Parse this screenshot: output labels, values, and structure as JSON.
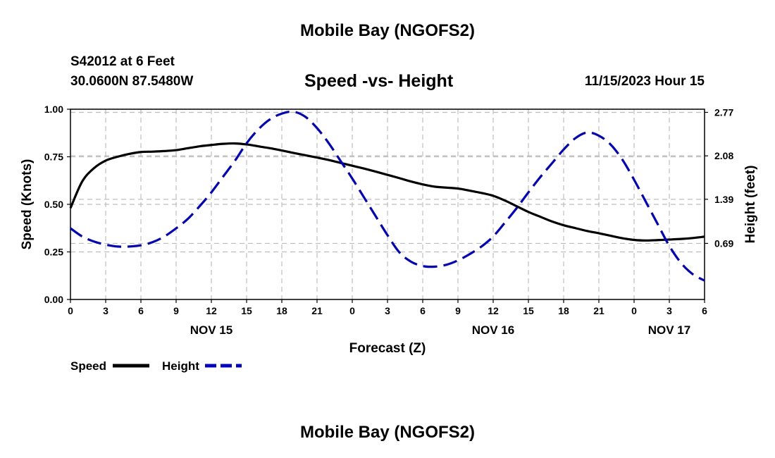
{
  "header": {
    "title": "Mobile Bay (NGOFS2)",
    "station": "S42012 at 6 Feet",
    "coords": "30.0600N  87.5480W",
    "datetime": "11/15/2023 Hour 15",
    "footer_title": "Mobile Bay (NGOFS2)"
  },
  "chart_data": {
    "type": "line",
    "title": "Speed -vs- Height",
    "xlabel": "Forecast (Z)",
    "ylabel_left": "Speed (Knots)",
    "ylabel_right": "Height (feet)",
    "x_range_hours": [
      0,
      54
    ],
    "x_ticks": [
      {
        "hour": 0,
        "label": "0"
      },
      {
        "hour": 3,
        "label": "3"
      },
      {
        "hour": 6,
        "label": "6"
      },
      {
        "hour": 9,
        "label": "9"
      },
      {
        "hour": 12,
        "label": "12"
      },
      {
        "hour": 15,
        "label": "15"
      },
      {
        "hour": 18,
        "label": "18"
      },
      {
        "hour": 21,
        "label": "21"
      },
      {
        "hour": 24,
        "label": "0"
      },
      {
        "hour": 27,
        "label": "3"
      },
      {
        "hour": 30,
        "label": "6"
      },
      {
        "hour": 33,
        "label": "9"
      },
      {
        "hour": 36,
        "label": "12"
      },
      {
        "hour": 39,
        "label": "15"
      },
      {
        "hour": 42,
        "label": "18"
      },
      {
        "hour": 45,
        "label": "21"
      },
      {
        "hour": 48,
        "label": "0"
      },
      {
        "hour": 51,
        "label": "3"
      },
      {
        "hour": 54,
        "label": "6"
      }
    ],
    "date_labels": [
      {
        "hour": 12,
        "label": "NOV 15"
      },
      {
        "hour": 36,
        "label": "NOV 16"
      },
      {
        "hour": 51,
        "label": "NOV 17"
      }
    ],
    "left_axis": {
      "range": [
        0,
        1.0
      ],
      "ticks": [
        0.0,
        0.25,
        0.5,
        0.75,
        1.0
      ],
      "tick_labels": [
        "0.00",
        "0.25",
        "0.50",
        "0.75",
        "1.00"
      ]
    },
    "right_axis": {
      "range": [
        -0.2,
        2.82
      ],
      "ticks": [
        0.69,
        1.39,
        2.08,
        2.77
      ],
      "tick_labels": [
        "0.69",
        "1.39",
        "2.08",
        "2.77"
      ]
    },
    "grid": true,
    "legend_position": "bottom-left",
    "series": [
      {
        "name": "Speed",
        "axis": "left",
        "color": "#000000",
        "dash": "solid",
        "points": [
          [
            0,
            0.48
          ],
          [
            1,
            0.62
          ],
          [
            2,
            0.69
          ],
          [
            3,
            0.73
          ],
          [
            4,
            0.75
          ],
          [
            5,
            0.765
          ],
          [
            6,
            0.775
          ],
          [
            7,
            0.777
          ],
          [
            8,
            0.78
          ],
          [
            9,
            0.785
          ],
          [
            10,
            0.795
          ],
          [
            11,
            0.805
          ],
          [
            12,
            0.812
          ],
          [
            13,
            0.818
          ],
          [
            14,
            0.82
          ],
          [
            15,
            0.815
          ],
          [
            16,
            0.805
          ],
          [
            17,
            0.795
          ],
          [
            18,
            0.783
          ],
          [
            19,
            0.77
          ],
          [
            20,
            0.758
          ],
          [
            21,
            0.746
          ],
          [
            22,
            0.733
          ],
          [
            23,
            0.718
          ],
          [
            24,
            0.703
          ],
          [
            25,
            0.688
          ],
          [
            26,
            0.672
          ],
          [
            27,
            0.655
          ],
          [
            28,
            0.638
          ],
          [
            29,
            0.62
          ],
          [
            30,
            0.605
          ],
          [
            31,
            0.593
          ],
          [
            32,
            0.588
          ],
          [
            33,
            0.583
          ],
          [
            34,
            0.572
          ],
          [
            35,
            0.56
          ],
          [
            36,
            0.545
          ],
          [
            37,
            0.52
          ],
          [
            38,
            0.49
          ],
          [
            39,
            0.46
          ],
          [
            40,
            0.435
          ],
          [
            41,
            0.41
          ],
          [
            42,
            0.39
          ],
          [
            43,
            0.375
          ],
          [
            44,
            0.36
          ],
          [
            45,
            0.348
          ],
          [
            46,
            0.335
          ],
          [
            47,
            0.322
          ],
          [
            48,
            0.313
          ],
          [
            49,
            0.31
          ],
          [
            50,
            0.312
          ],
          [
            51,
            0.315
          ],
          [
            52,
            0.318
          ],
          [
            53,
            0.323
          ],
          [
            54,
            0.33
          ]
        ]
      },
      {
        "name": "Height",
        "axis": "right",
        "color": "#0000cc",
        "dash": "dashed",
        "points": [
          [
            0,
            0.93
          ],
          [
            1,
            0.8
          ],
          [
            2,
            0.72
          ],
          [
            3,
            0.67
          ],
          [
            4,
            0.64
          ],
          [
            5,
            0.64
          ],
          [
            6,
            0.66
          ],
          [
            7,
            0.71
          ],
          [
            8,
            0.8
          ],
          [
            9,
            0.93
          ],
          [
            10,
            1.08
          ],
          [
            11,
            1.28
          ],
          [
            12,
            1.5
          ],
          [
            13,
            1.75
          ],
          [
            14,
            2.0
          ],
          [
            15,
            2.28
          ],
          [
            16,
            2.5
          ],
          [
            17,
            2.66
          ],
          [
            18,
            2.75
          ],
          [
            19,
            2.78
          ],
          [
            20,
            2.7
          ],
          [
            21,
            2.52
          ],
          [
            22,
            2.28
          ],
          [
            23,
            2.0
          ],
          [
            24,
            1.72
          ],
          [
            25,
            1.42
          ],
          [
            26,
            1.12
          ],
          [
            27,
            0.82
          ],
          [
            28,
            0.55
          ],
          [
            29,
            0.4
          ],
          [
            30,
            0.33
          ],
          [
            31,
            0.32
          ],
          [
            32,
            0.35
          ],
          [
            33,
            0.42
          ],
          [
            34,
            0.52
          ],
          [
            35,
            0.64
          ],
          [
            36,
            0.8
          ],
          [
            37,
            1.02
          ],
          [
            38,
            1.25
          ],
          [
            39,
            1.5
          ],
          [
            40,
            1.74
          ],
          [
            41,
            1.96
          ],
          [
            42,
            2.18
          ],
          [
            43,
            2.36
          ],
          [
            44,
            2.45
          ],
          [
            45,
            2.4
          ],
          [
            46,
            2.26
          ],
          [
            47,
            2.02
          ],
          [
            48,
            1.7
          ],
          [
            49,
            1.35
          ],
          [
            50,
            1.0
          ],
          [
            51,
            0.65
          ],
          [
            52,
            0.38
          ],
          [
            53,
            0.2
          ],
          [
            54,
            0.1
          ]
        ]
      }
    ]
  },
  "legend": {
    "speed_label": "Speed",
    "height_label": "Height"
  }
}
